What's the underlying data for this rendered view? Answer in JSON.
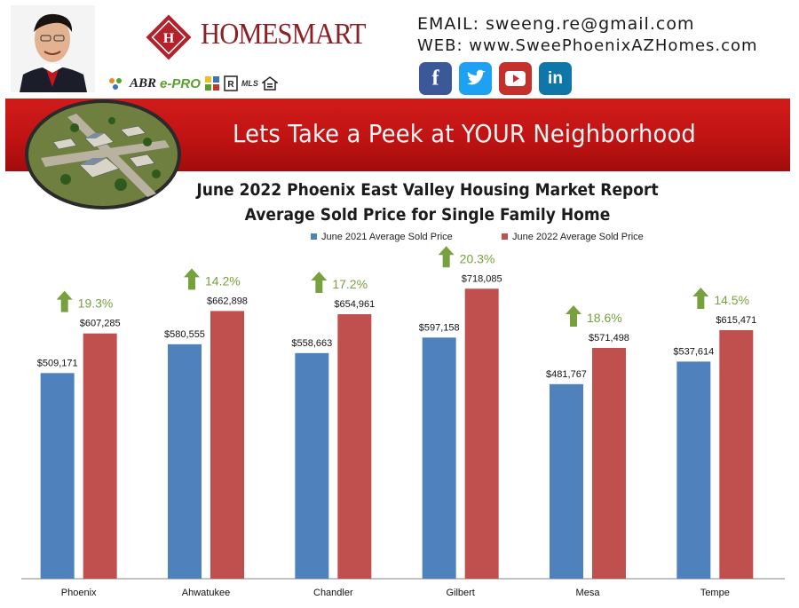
{
  "header": {
    "brand": "HOMESMART",
    "email_line": "EMAIL: sweeng.re@gmail.com",
    "web_line": "WEB: www.SweePhoenixAZHomes.com",
    "cert_logos": [
      "ABR",
      "e-PRO",
      "MLS"
    ],
    "social_icons": [
      "facebook-icon",
      "twitter-icon",
      "youtube-icon",
      "linkedin-icon"
    ]
  },
  "banner": {
    "text": "Lets Take a Peek at YOUR Neighborhood"
  },
  "colors": {
    "series_2021": "#4f81bd",
    "series_2022": "#c0504d",
    "growth": "#77a13f",
    "banner": "#c41616"
  },
  "chart_data": {
    "type": "bar",
    "title": "June 2022 Phoenix East Valley Housing Market Report",
    "subtitle": "Average Sold Price for Single Family Home",
    "legend_position": "top",
    "grid": false,
    "categories": [
      "Phoenix",
      "Ahwatukee",
      "Chandler",
      "Gilbert",
      "Mesa",
      "Tempe"
    ],
    "series": [
      {
        "name": "June 2021 Average Sold Price",
        "values": [
          509171,
          580555,
          558663,
          597158,
          481767,
          537614
        ],
        "labels": [
          "$509,171",
          "$580,555",
          "$558,663",
          "$597,158",
          "$481,767",
          "$537,614"
        ]
      },
      {
        "name": "June 2022 Average Sold Price",
        "values": [
          607285,
          662898,
          654961,
          718085,
          571498,
          615471
        ],
        "labels": [
          "$607,285",
          "$662,898",
          "$654,961",
          "$718,085",
          "$571,498",
          "$615,471"
        ]
      }
    ],
    "growth_labels": [
      "19.3%",
      "14.2%",
      "17.2%",
      "20.3%",
      "18.6%",
      "14.5%"
    ],
    "ylim": [
      0,
      800000
    ]
  }
}
